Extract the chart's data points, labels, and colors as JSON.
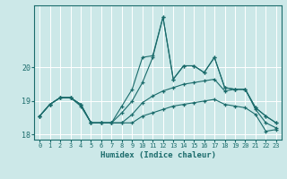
{
  "xlabel": "Humidex (Indice chaleur)",
  "bg_color": "#cce8e8",
  "grid_color": "#ffffff",
  "line_color": "#1a6b6b",
  "x": [
    0,
    1,
    2,
    3,
    4,
    5,
    6,
    7,
    8,
    9,
    10,
    11,
    12,
    13,
    14,
    15,
    16,
    17,
    18,
    19,
    20,
    21,
    22,
    23
  ],
  "line1": [
    18.55,
    18.9,
    19.1,
    19.1,
    18.9,
    18.35,
    18.35,
    18.35,
    18.85,
    19.35,
    20.3,
    20.35,
    21.5,
    19.65,
    20.05,
    20.05,
    19.85,
    20.3,
    19.4,
    19.35,
    19.35,
    18.8,
    18.55,
    18.35
  ],
  "line2": [
    18.55,
    18.9,
    19.1,
    19.1,
    18.9,
    18.35,
    18.35,
    18.35,
    18.65,
    19.0,
    19.55,
    20.3,
    21.5,
    19.65,
    20.05,
    20.05,
    19.85,
    20.3,
    19.4,
    19.35,
    19.35,
    18.8,
    18.55,
    18.35
  ],
  "line3": [
    18.55,
    18.9,
    19.1,
    19.1,
    18.9,
    18.35,
    18.35,
    18.35,
    18.35,
    18.6,
    18.95,
    19.15,
    19.3,
    19.4,
    19.5,
    19.55,
    19.6,
    19.65,
    19.3,
    19.35,
    19.35,
    18.75,
    18.35,
    18.2
  ],
  "line4": [
    18.55,
    18.9,
    19.1,
    19.1,
    18.85,
    18.35,
    18.35,
    18.35,
    18.35,
    18.35,
    18.55,
    18.65,
    18.75,
    18.85,
    18.9,
    18.95,
    19.0,
    19.05,
    18.9,
    18.85,
    18.8,
    18.6,
    18.1,
    18.15
  ],
  "ylim": [
    17.85,
    21.85
  ],
  "yticks": [
    18,
    19,
    20
  ],
  "xticks": [
    0,
    1,
    2,
    3,
    4,
    5,
    6,
    7,
    8,
    9,
    10,
    11,
    12,
    13,
    14,
    15,
    16,
    17,
    18,
    19,
    20,
    21,
    22,
    23
  ]
}
